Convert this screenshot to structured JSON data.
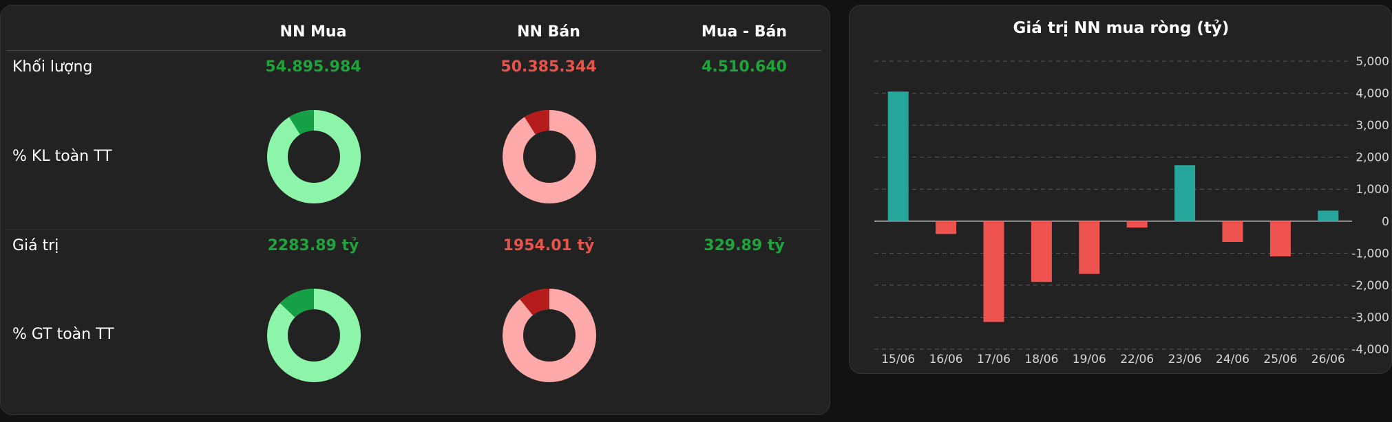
{
  "table": {
    "col_headers": [
      "NN Mua",
      "NN Bán",
      "Mua - Bán"
    ],
    "rows": {
      "volume_label": "Khối lượng",
      "volume_pct_label": "% KL toàn TT",
      "value_label": "Giá trị",
      "value_pct_label": "% GT toàn TT"
    },
    "volume": {
      "buy": "54.895.984",
      "sell": "50.385.344",
      "net": "4.510.640"
    },
    "value": {
      "buy": "2283.89 tỷ",
      "sell": "1954.01 tỷ",
      "net": "329.89 tỷ"
    }
  },
  "donuts": {
    "volume_buy_pct": 9,
    "volume_sell_pct": 9,
    "value_buy_pct": 13,
    "value_sell_pct": 11,
    "buy_colors": {
      "main": "#8cf5a9",
      "highlight": "#17a146"
    },
    "sell_colors": {
      "main": "#ffaaaa",
      "highlight": "#b71c1c"
    }
  },
  "colors": {
    "positive_text": "#1ea43a",
    "negative_text": "#e8544c",
    "bar_positive": "#26a69a",
    "bar_negative": "#ef5350"
  },
  "chart_data": {
    "type": "bar",
    "title": "Giá trị NN mua ròng (tỷ)",
    "categories": [
      "15/06",
      "16/06",
      "17/06",
      "18/06",
      "19/06",
      "22/06",
      "23/06",
      "24/06",
      "25/06",
      "26/06"
    ],
    "values": [
      4050,
      -400,
      -3150,
      -1900,
      -1650,
      -200,
      1750,
      -650,
      -1100,
      330
    ],
    "ylim": [
      -4000,
      5000
    ],
    "yticks": [
      5000,
      4000,
      3000,
      2000,
      1000,
      0,
      -1000,
      -2000,
      -3000,
      -4000
    ],
    "ytick_labels": [
      "5,000",
      "4,000",
      "3,000",
      "2,000",
      "1,000",
      "0",
      "-1,000",
      "-2,000",
      "-3,000",
      "-4,000"
    ],
    "grid": true,
    "y_axis_side": "right"
  }
}
